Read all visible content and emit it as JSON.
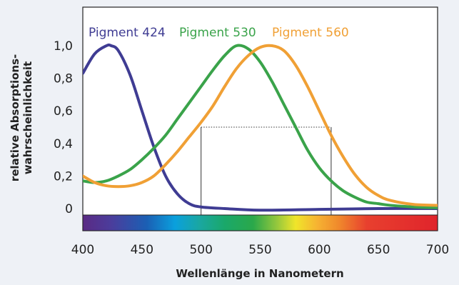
{
  "chart_data": {
    "type": "line",
    "title": "",
    "xlabel": "Wellenlänge in Nanometern",
    "ylabel": [
      "relative Absorptions-",
      "wahrscheinlichkeit"
    ],
    "xlim": [
      400,
      700
    ],
    "ylim": [
      0,
      1.0
    ],
    "x_ticks": [
      400,
      450,
      500,
      550,
      600,
      650,
      700
    ],
    "x_tick_labels": [
      "400",
      "450",
      "500",
      "550",
      "600",
      "650",
      "700"
    ],
    "y_ticks": [
      0,
      0.2,
      0.4,
      0.6,
      0.8,
      1.0
    ],
    "y_tick_labels": [
      "0",
      "0,2",
      "0,4",
      "0,6",
      "0,8",
      "1,0"
    ],
    "grid": false,
    "legend_position": "top",
    "series": [
      {
        "name": "Pigment 424",
        "color": "#3f3c93",
        "x": [
          400,
          410,
          420,
          424,
          430,
          440,
          450,
          460,
          470,
          480,
          490,
          500,
          520,
          550,
          600,
          650,
          700
        ],
        "y": [
          0.83,
          0.95,
          1.0,
          1.0,
          0.97,
          0.82,
          0.6,
          0.38,
          0.2,
          0.09,
          0.03,
          0.01,
          0.0,
          -0.01,
          -0.005,
          0.0,
          0.0
        ]
      },
      {
        "name": "Pigment 530",
        "color": "#3aa34a",
        "x": [
          400,
          410,
          420,
          430,
          440,
          450,
          460,
          470,
          480,
          490,
          500,
          510,
          520,
          530,
          540,
          550,
          560,
          570,
          580,
          590,
          600,
          610,
          620,
          630,
          640,
          650,
          660,
          680,
          700
        ],
        "y": [
          0.17,
          0.16,
          0.17,
          0.2,
          0.24,
          0.3,
          0.37,
          0.45,
          0.55,
          0.65,
          0.75,
          0.85,
          0.94,
          1.0,
          0.98,
          0.9,
          0.78,
          0.64,
          0.5,
          0.36,
          0.25,
          0.17,
          0.11,
          0.07,
          0.04,
          0.03,
          0.02,
          0.01,
          0.005
        ]
      },
      {
        "name": "Pigment 560",
        "color": "#f0a035",
        "x": [
          400,
          410,
          420,
          430,
          440,
          450,
          460,
          470,
          480,
          490,
          500,
          510,
          520,
          530,
          540,
          550,
          560,
          570,
          580,
          590,
          600,
          610,
          620,
          630,
          640,
          650,
          660,
          680,
          700
        ],
        "y": [
          0.2,
          0.16,
          0.14,
          0.135,
          0.14,
          0.16,
          0.2,
          0.27,
          0.35,
          0.44,
          0.53,
          0.63,
          0.75,
          0.86,
          0.94,
          0.99,
          1.0,
          0.97,
          0.88,
          0.75,
          0.6,
          0.45,
          0.32,
          0.21,
          0.13,
          0.08,
          0.05,
          0.025,
          0.02
        ]
      }
    ],
    "annotations": {
      "guide_level": 0.5,
      "guide_x_start": 500,
      "guide_x_end": 610
    },
    "spectrum_bar": true
  }
}
